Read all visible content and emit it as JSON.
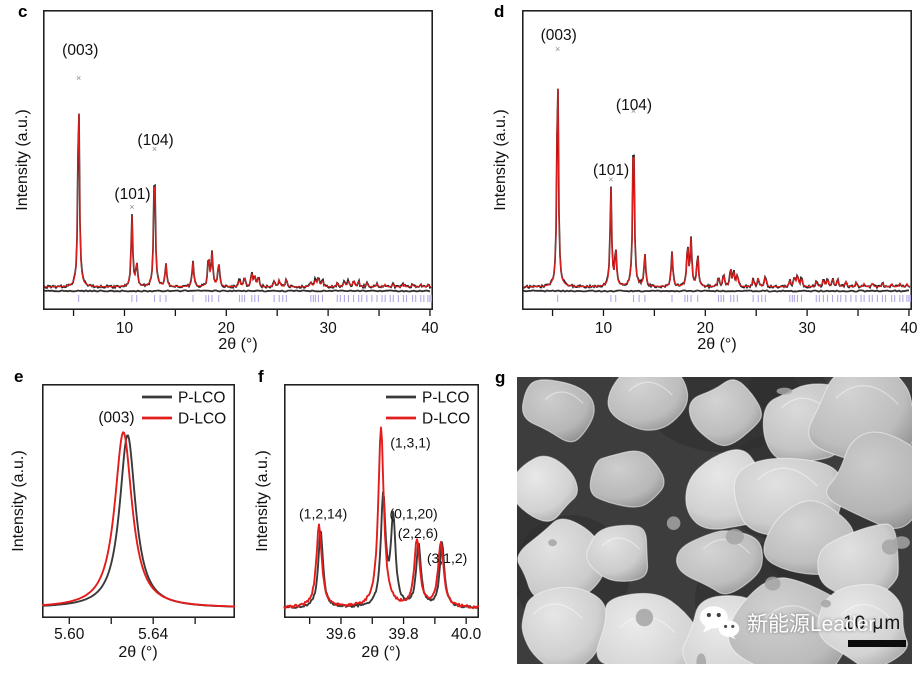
{
  "figure_labels": {
    "c": "c",
    "d": "d",
    "e": "e",
    "f": "f",
    "g": "g"
  },
  "colors": {
    "calculated_red": "#e31c1c",
    "observed_dark": "#2b2626",
    "p_lco": "#3a3a3a",
    "d_lco": "#e31c1c",
    "bragg_tick": "#b4a7e5",
    "frame": "#151515",
    "sem_background": "#3d3d3d"
  },
  "chart_data": [
    {
      "panel_label": "c",
      "type": "xrd_rietveld_pattern",
      "xlabel": "2θ (°)",
      "ylabel": "Intensity (a.u.)",
      "xlim": [
        2.0,
        40.3
      ],
      "xticks": [
        {
          "v": 5,
          "label": ""
        },
        {
          "v": 10,
          "label": "10"
        },
        {
          "v": 15,
          "label": ""
        },
        {
          "v": 20,
          "label": "20"
        },
        {
          "v": 25,
          "label": ""
        },
        {
          "v": 30,
          "label": "30"
        },
        {
          "v": 35,
          "label": ""
        },
        {
          "v": 40,
          "label": "40"
        }
      ],
      "peak_annotations": [
        {
          "text": "(003)",
          "x": 5.66,
          "yf": 0.15
        },
        {
          "text": "(101)",
          "x": 10.79,
          "yf": 0.63
        },
        {
          "text": "(104)",
          "x": 13.05,
          "yf": 0.45
        }
      ],
      "legend_note": "observed points (dark), calculated fit (red), difference line (dark), Bragg positions (lavender ticks)",
      "colors": {
        "observed": "#2b2626",
        "calculated": "#e31c1c",
        "difference": "#332d2d",
        "bragg": "#b4a7e5"
      },
      "peak_hwhm": 0.09,
      "amp_frac": 0.667,
      "peaks": [
        [
          5.5,
          1.0
        ],
        [
          10.73,
          0.355
        ],
        [
          11.2,
          0.12
        ],
        [
          12.95,
          0.645
        ],
        [
          14.07,
          0.115
        ],
        [
          16.73,
          0.125
        ],
        [
          18.26,
          0.15
        ],
        [
          18.6,
          0.165
        ],
        [
          19.25,
          0.125
        ],
        [
          21.3,
          0.035
        ],
        [
          21.8,
          0.047
        ],
        [
          22.5,
          0.066
        ],
        [
          22.8,
          0.05
        ],
        [
          23.15,
          0.045
        ],
        [
          24.7,
          0.026
        ],
        [
          25.2,
          0.036
        ],
        [
          25.9,
          0.04
        ],
        [
          28.3,
          0.022
        ],
        [
          28.75,
          0.033
        ],
        [
          29.05,
          0.044
        ],
        [
          29.45,
          0.033
        ],
        [
          30.9,
          0.02
        ],
        [
          31.6,
          0.026
        ],
        [
          32.0,
          0.03
        ],
        [
          32.5,
          0.032
        ],
        [
          33.0,
          0.029
        ],
        [
          33.8,
          0.021
        ],
        [
          34.8,
          0.016
        ],
        [
          35.6,
          0.013
        ],
        [
          36.4,
          0.014
        ],
        [
          37.4,
          0.016
        ],
        [
          38.3,
          0.013
        ],
        [
          39.1,
          0.015
        ],
        [
          39.8,
          0.012
        ]
      ],
      "bragg_ticks": [
        5.5,
        10.73,
        11.2,
        12.95,
        13.5,
        14.07,
        16.73,
        18.0,
        18.26,
        18.6,
        19.25,
        21.3,
        21.55,
        21.8,
        22.5,
        22.8,
        23.15,
        24.7,
        25.2,
        25.55,
        25.9,
        28.3,
        28.55,
        28.75,
        29.05,
        29.45,
        30.9,
        31.2,
        31.6,
        32.0,
        32.5,
        33.0,
        33.3,
        33.8,
        34.3,
        34.8,
        35.3,
        35.6,
        36.1,
        36.4,
        36.9,
        37.4,
        37.7,
        38.3,
        38.6,
        39.1,
        39.4,
        39.8,
        40.0,
        40.15
      ]
    },
    {
      "panel_label": "d",
      "type": "xrd_rietveld_pattern",
      "xlabel": "2θ (°)",
      "ylabel": "Intensity (a.u.)",
      "xlim": [
        2.0,
        40.3
      ],
      "xticks": [
        {
          "v": 5,
          "label": ""
        },
        {
          "v": 10,
          "label": "10"
        },
        {
          "v": 15,
          "label": ""
        },
        {
          "v": 20,
          "label": "20"
        },
        {
          "v": 25,
          "label": ""
        },
        {
          "v": 30,
          "label": "30"
        },
        {
          "v": 35,
          "label": ""
        },
        {
          "v": 40,
          "label": "40"
        }
      ],
      "peak_annotations": [
        {
          "text": "(003)",
          "x": 5.6,
          "yf": 0.1
        },
        {
          "text": "(101)",
          "x": 10.75,
          "yf": 0.55
        },
        {
          "text": "(104)",
          "x": 13.0,
          "yf": 0.333
        }
      ],
      "colors": {
        "observed": "#2b2626",
        "calculated": "#e31c1c",
        "difference": "#332d2d",
        "bragg": "#b4a7e5"
      },
      "peak_hwhm": 0.09,
      "amp_frac": 0.763,
      "peaks": [
        [
          5.5,
          1.0
        ],
        [
          10.73,
          0.43
        ],
        [
          11.2,
          0.165
        ],
        [
          12.95,
          0.73
        ],
        [
          14.07,
          0.14
        ],
        [
          16.73,
          0.15
        ],
        [
          18.26,
          0.185
        ],
        [
          18.6,
          0.2
        ],
        [
          19.25,
          0.145
        ],
        [
          21.3,
          0.04
        ],
        [
          21.8,
          0.055
        ],
        [
          22.5,
          0.075
        ],
        [
          22.8,
          0.06
        ],
        [
          23.15,
          0.05
        ],
        [
          24.7,
          0.03
        ],
        [
          25.2,
          0.04
        ],
        [
          25.9,
          0.045
        ],
        [
          28.3,
          0.027
        ],
        [
          28.75,
          0.038
        ],
        [
          29.05,
          0.05
        ],
        [
          29.45,
          0.038
        ],
        [
          30.9,
          0.024
        ],
        [
          31.6,
          0.03
        ],
        [
          32.0,
          0.034
        ],
        [
          32.5,
          0.037
        ],
        [
          33.0,
          0.034
        ],
        [
          33.8,
          0.024
        ],
        [
          34.8,
          0.018
        ],
        [
          35.6,
          0.015
        ],
        [
          36.4,
          0.016
        ],
        [
          37.4,
          0.018
        ],
        [
          38.3,
          0.015
        ],
        [
          39.1,
          0.016
        ],
        [
          39.8,
          0.014
        ]
      ],
      "bragg_ticks": [
        5.5,
        10.73,
        11.2,
        12.95,
        13.5,
        14.07,
        16.73,
        18.0,
        18.26,
        18.6,
        19.25,
        21.3,
        21.55,
        21.8,
        22.5,
        22.8,
        23.15,
        24.7,
        25.2,
        25.55,
        25.9,
        28.3,
        28.55,
        28.75,
        29.05,
        29.45,
        30.9,
        31.2,
        31.6,
        32.0,
        32.5,
        33.0,
        33.3,
        33.8,
        34.3,
        34.8,
        35.3,
        35.6,
        36.1,
        36.4,
        36.9,
        37.4,
        37.7,
        38.3,
        38.6,
        39.1,
        39.4,
        39.8,
        40.0,
        40.15
      ]
    },
    {
      "panel_label": "e",
      "type": "line",
      "xlabel": "2θ (°)",
      "ylabel": "Intensity (a.u.)",
      "xlim": [
        5.587,
        5.679
      ],
      "xticks": [
        {
          "v": 5.6,
          "label": "5.60"
        },
        {
          "v": 5.62,
          "label": ""
        },
        {
          "v": 5.64,
          "label": "5.64"
        },
        {
          "v": 5.66,
          "label": ""
        }
      ],
      "legend": [
        {
          "label": "P-LCO",
          "color": "#3a3a3a"
        },
        {
          "label": "D-LCO",
          "color": "#e31c1c"
        }
      ],
      "peak_annotations": [
        {
          "text": "(003)",
          "x": 5.6225,
          "yf": 0.165
        }
      ],
      "series": [
        {
          "name": "P-LCO",
          "color": "#3a3a3a",
          "peaks": [
            [
              5.6278,
              0.739
            ]
          ],
          "hwhm": 0.0046,
          "noise": 0
        },
        {
          "name": "D-LCO",
          "color": "#e31c1c",
          "peaks": [
            [
              5.6258,
              0.752
            ]
          ],
          "hwhm": 0.005,
          "noise": 0
        }
      ]
    },
    {
      "panel_label": "f",
      "type": "line",
      "xlabel": "2θ (°)",
      "ylabel": "Intensity (a.u.)",
      "xlim": [
        39.418,
        40.041
      ],
      "xticks": [
        {
          "v": 39.5,
          "label": ""
        },
        {
          "v": 39.6,
          "label": "39.6"
        },
        {
          "v": 39.7,
          "label": ""
        },
        {
          "v": 39.8,
          "label": "39.8"
        },
        {
          "v": 39.9,
          "label": ""
        },
        {
          "v": 40.0,
          "label": "40.0"
        }
      ],
      "legend": [
        {
          "label": "P-LCO",
          "color": "#3a3a3a"
        },
        {
          "label": "D-LCO",
          "color": "#e31c1c"
        }
      ],
      "peak_annotations": [
        {
          "text": "(1,2,14)",
          "x": 39.543,
          "yf": 0.575
        },
        {
          "text": "(1,3,1)",
          "x": 39.822,
          "yf": 0.272
        },
        {
          "text": "(0,1,20)",
          "x": 39.832,
          "yf": 0.575
        },
        {
          "text": "(2,2,6)",
          "x": 39.846,
          "yf": 0.658
        },
        {
          "text": "(3,1,2)",
          "x": 39.939,
          "yf": 0.765
        }
      ],
      "series": [
        {
          "name": "P-LCO",
          "color": "#3a3a3a",
          "peaks": [
            [
              39.535,
              0.33
            ],
            [
              39.735,
              0.47
            ],
            [
              39.767,
              0.37
            ],
            [
              39.848,
              0.27
            ],
            [
              39.923,
              0.27
            ]
          ],
          "hwhm": 0.009,
          "noise": 0.005
        },
        {
          "name": "D-LCO",
          "color": "#e31c1c",
          "peaks": [
            [
              39.53,
              0.35
            ],
            [
              39.728,
              0.77
            ],
            [
              39.843,
              0.286
            ],
            [
              39.919,
              0.278
            ]
          ],
          "hwhm": 0.0105,
          "noise": 0.006
        }
      ]
    }
  ],
  "sem_panel": {
    "panel_label": "g",
    "description": "SEM micrograph of LCO particles",
    "watermark_text": "新能源Leader",
    "scale_bar_label": "10 μm"
  }
}
